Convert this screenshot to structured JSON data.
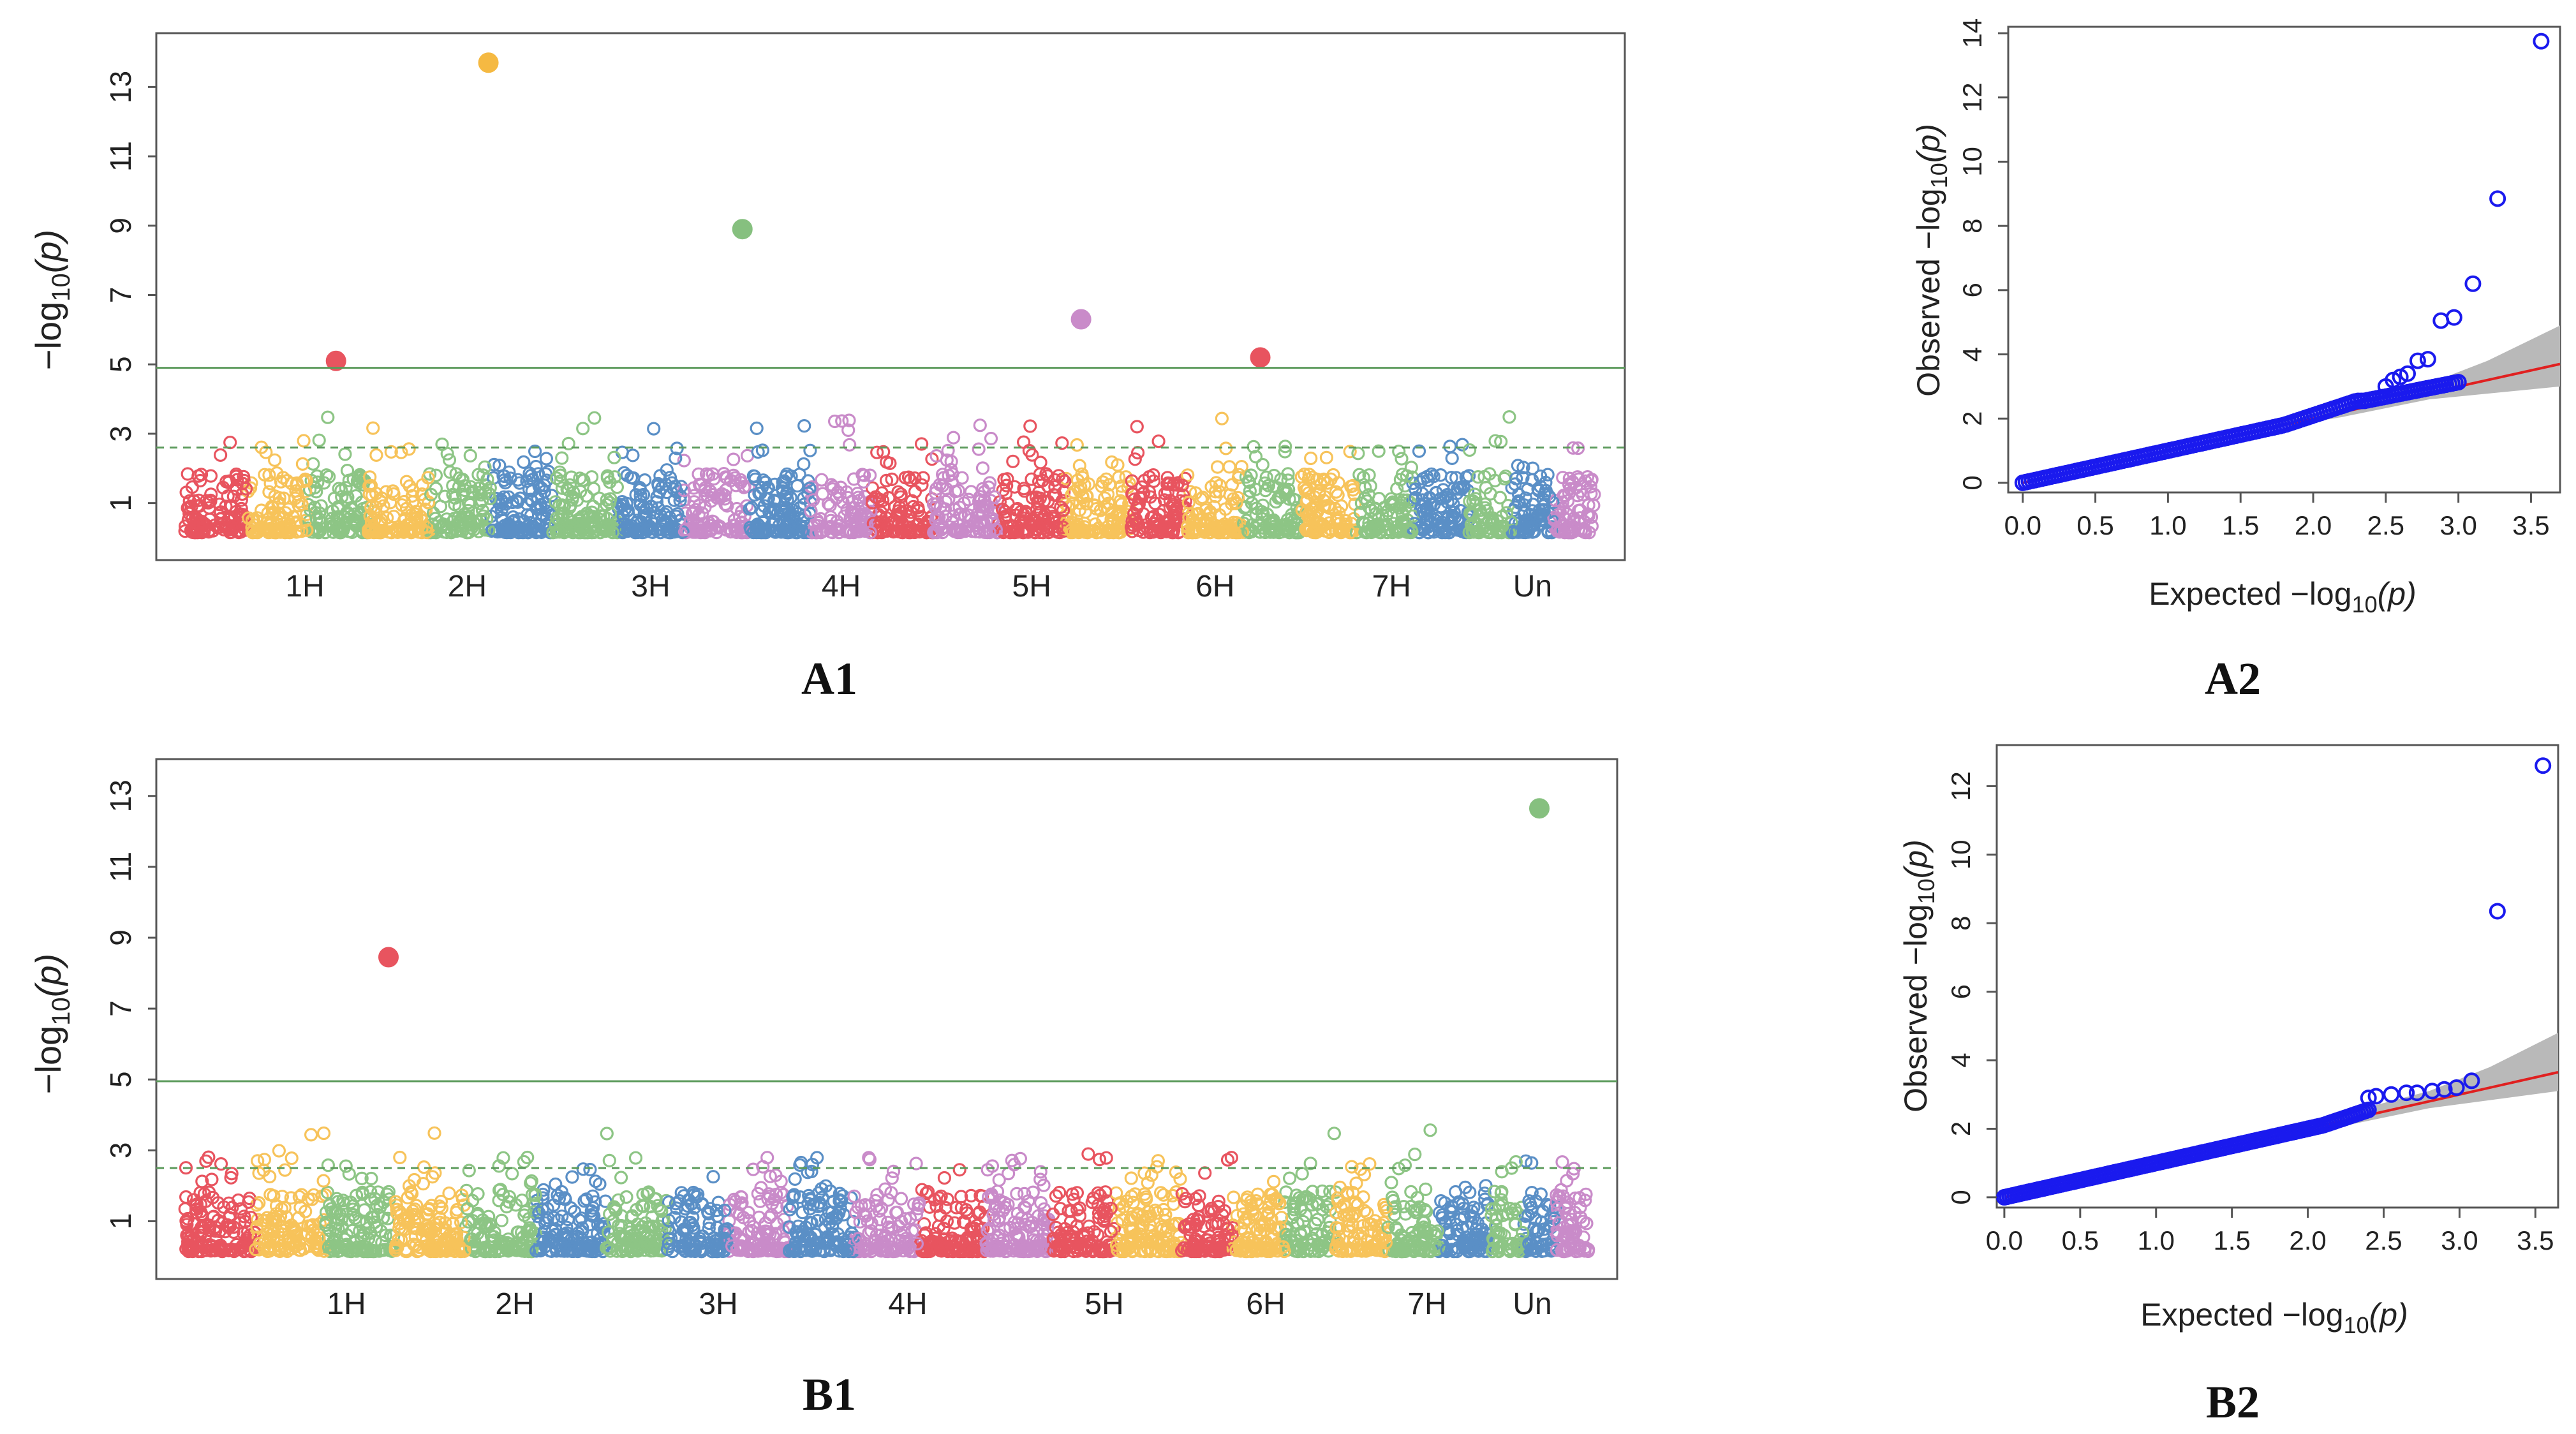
{
  "chart_data": [
    {
      "id": "A1",
      "type": "scatter",
      "subtype": "manhattan",
      "panel_label": "A1",
      "ylabel_main": "−log",
      "ylabel_sub": "10",
      "ylabel_arg": "(p)",
      "ylim": [
        0,
        14
      ],
      "yticks": [
        "1",
        "3",
        "5",
        "7",
        "9",
        "11",
        "13"
      ],
      "ytick_values": [
        1,
        3,
        5,
        7,
        9,
        11,
        13
      ],
      "chromosomes": [
        {
          "name": "1H",
          "start": 0,
          "end": 13,
          "label_pos": 8.5
        },
        {
          "name": "2H",
          "start": 13,
          "end": 26,
          "label_pos": 20
        },
        {
          "name": "3H",
          "start": 26,
          "end": 40,
          "label_pos": 33
        },
        {
          "name": "4H",
          "start": 40,
          "end": 53,
          "label_pos": 46.5
        },
        {
          "name": "5H",
          "start": 53,
          "end": 67,
          "label_pos": 60
        },
        {
          "name": "6H",
          "start": 67,
          "end": 79,
          "label_pos": 73
        },
        {
          "name": "7H",
          "start": 79,
          "end": 91,
          "label_pos": 85.5
        },
        {
          "name": "Un",
          "start": 91,
          "end": 100,
          "label_pos": 95.5
        }
      ],
      "colors": [
        "#e8545f",
        "#f7c35a",
        "#8dc585",
        "#5a8fc6",
        "#c98bc9"
      ],
      "threshold_solid": 4.9,
      "threshold_dashed": 2.6,
      "line_color": "#5b9a5b",
      "significant": [
        {
          "x": 21.5,
          "y": 13.7,
          "color": "#f5b942"
        },
        {
          "x": 39.5,
          "y": 8.9,
          "color": "#86c07f"
        },
        {
          "x": 63.5,
          "y": 6.3,
          "color": "#c98bc9"
        },
        {
          "x": 10.7,
          "y": 5.1,
          "color": "#e8545f"
        },
        {
          "x": 76.2,
          "y": 5.2,
          "color": "#e8545f"
        }
      ],
      "seed": 11
    },
    {
      "id": "A2",
      "type": "scatter",
      "subtype": "qq",
      "panel_label": "A2",
      "xlabel_main": "Expected  −log",
      "xlabel_sub": "10",
      "xlabel_arg": "(p)",
      "ylabel_main": "Observed  −log",
      "ylabel_sub": "10",
      "ylabel_arg": "(p)",
      "xlim": [
        -0.1,
        3.7
      ],
      "ylim": [
        -0.3,
        14.2
      ],
      "xticks": [
        "0.0",
        "0.5",
        "1.0",
        "1.5",
        "2.0",
        "2.5",
        "3.0",
        "3.5"
      ],
      "xtick_values": [
        0,
        0.5,
        1.0,
        1.5,
        2.0,
        2.5,
        3.0,
        3.5
      ],
      "yticks": [
        "0",
        "2",
        "4",
        "6",
        "8",
        "10",
        "12",
        "14"
      ],
      "ytick_values": [
        0,
        2,
        4,
        6,
        8,
        10,
        12,
        14
      ],
      "tail_points": [
        [
          3.57,
          13.75
        ],
        [
          3.27,
          8.85
        ],
        [
          3.1,
          6.2
        ],
        [
          2.97,
          5.15
        ],
        [
          2.88,
          5.05
        ],
        [
          2.79,
          3.85
        ],
        [
          2.72,
          3.8
        ],
        [
          2.65,
          3.4
        ],
        [
          2.6,
          3.3
        ],
        [
          2.55,
          3.2
        ],
        [
          2.5,
          3.0
        ]
      ],
      "plateau": [
        1.8,
        2.35,
        2.55
      ],
      "end_x": 3.0,
      "band_end": [
        3.7,
        3.0,
        4.9
      ]
    },
    {
      "id": "B1",
      "type": "scatter",
      "subtype": "manhattan",
      "panel_label": "B1",
      "ylabel_main": "−log",
      "ylabel_sub": "10",
      "ylabel_arg": "(p)",
      "ylim": [
        0,
        13.5
      ],
      "yticks": [
        "1",
        "3",
        "5",
        "7",
        "9",
        "11",
        "13"
      ],
      "ytick_values": [
        1,
        3,
        5,
        7,
        9,
        11,
        13
      ],
      "chromosomes": [
        {
          "name": "1H",
          "start": 0,
          "end": 15,
          "label_pos": 11.5
        },
        {
          "name": "2H",
          "start": 15,
          "end": 30,
          "label_pos": 23.5
        },
        {
          "name": "3H",
          "start": 30,
          "end": 43,
          "label_pos": 38
        },
        {
          "name": "4H",
          "start": 43,
          "end": 57,
          "label_pos": 51.5
        },
        {
          "name": "5H",
          "start": 57,
          "end": 71,
          "label_pos": 65.5
        },
        {
          "name": "6H",
          "start": 71,
          "end": 82,
          "label_pos": 77
        },
        {
          "name": "7H",
          "start": 82,
          "end": 93,
          "label_pos": 88.5
        },
        {
          "name": "Un",
          "start": 93,
          "end": 100,
          "label_pos": 96
        }
      ],
      "colors": [
        "#e8545f",
        "#f7c35a",
        "#8dc585",
        "#5a8fc6",
        "#c98bc9"
      ],
      "threshold_solid": 4.95,
      "threshold_dashed": 2.5,
      "line_color": "#5b9a5b",
      "significant": [
        {
          "x": 14.5,
          "y": 8.45,
          "color": "#e8545f"
        },
        {
          "x": 96.5,
          "y": 12.65,
          "color": "#86c07f"
        }
      ],
      "seed": 23
    },
    {
      "id": "B2",
      "type": "scatter",
      "subtype": "qq",
      "panel_label": "B2",
      "xlabel_main": "Expected  −log",
      "xlabel_sub": "10",
      "xlabel_arg": "(p)",
      "ylabel_main": "Observed  −log",
      "ylabel_sub": "10",
      "ylabel_arg": "(p)",
      "xlim": [
        -0.05,
        3.65
      ],
      "ylim": [
        -0.3,
        13.2
      ],
      "xticks": [
        "0.0",
        "0.5",
        "1.0",
        "1.5",
        "2.0",
        "2.5",
        "3.0",
        "3.5"
      ],
      "xtick_values": [
        0,
        0.5,
        1.0,
        1.5,
        2.0,
        2.5,
        3.0,
        3.5
      ],
      "yticks": [
        "0",
        "2",
        "4",
        "6",
        "8",
        "10",
        "12"
      ],
      "ytick_values": [
        0,
        2,
        4,
        6,
        8,
        10,
        12
      ],
      "tail_points": [
        [
          3.55,
          12.6
        ],
        [
          3.25,
          8.35
        ],
        [
          3.08,
          3.4
        ],
        [
          2.98,
          3.2
        ],
        [
          2.9,
          3.15
        ],
        [
          2.82,
          3.1
        ],
        [
          2.72,
          3.05
        ],
        [
          2.65,
          3.05
        ],
        [
          2.55,
          3.0
        ],
        [
          2.45,
          2.95
        ],
        [
          2.4,
          2.9
        ]
      ],
      "plateau": [
        2.1,
        2.4,
        2.9
      ],
      "end_x": 2.4,
      "band_end": [
        3.65,
        3.1,
        4.8
      ]
    }
  ]
}
